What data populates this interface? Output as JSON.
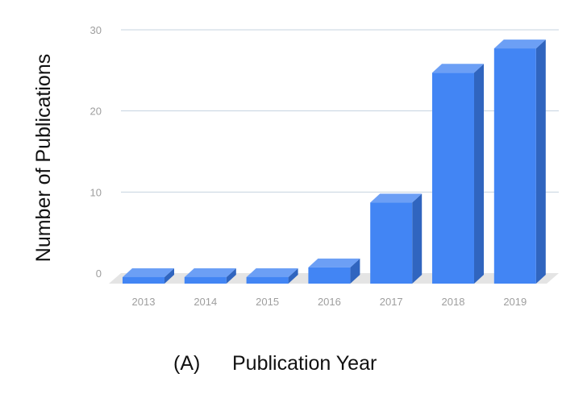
{
  "chart_data": {
    "type": "bar",
    "style": "3d-column",
    "categories": [
      "2013",
      "2014",
      "2015",
      "2016",
      "2017",
      "2018",
      "2019"
    ],
    "values": [
      0,
      0,
      0,
      2,
      10,
      26,
      29
    ],
    "ylim": [
      0,
      30
    ],
    "yticks": [
      0,
      10,
      20,
      30
    ],
    "ylabel": "Number of Publications",
    "xlabel": "Publication Year",
    "panel_label": "(A)",
    "grid": true,
    "legend": "none",
    "colors": {
      "bar_front": "#4285f4",
      "bar_top": "#6c9ff5",
      "bar_side": "#3065bf",
      "floor": "#e4e4e4",
      "grid": "#c5d3df",
      "tick_text": "#9e9e9e",
      "title_text": "#111111"
    }
  }
}
